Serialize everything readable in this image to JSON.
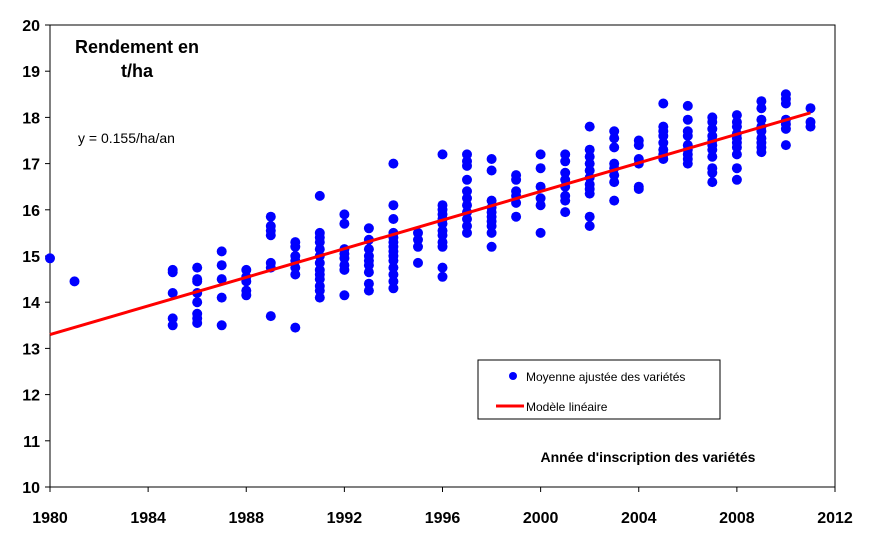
{
  "chart_data": {
    "type": "scatter",
    "title_lines": [
      "Rendement en",
      "t/ha"
    ],
    "equation": "y = 0.155/ha/an",
    "xlabel": "Année d'inscription des variétés",
    "ylabel": "",
    "xlim": [
      1980,
      2012
    ],
    "ylim": [
      10,
      20
    ],
    "x_ticks": [
      "1980",
      "1984",
      "1988",
      "1992",
      "1996",
      "2000",
      "2004",
      "2008",
      "2012"
    ],
    "y_ticks": [
      "10",
      "11",
      "12",
      "13",
      "14",
      "15",
      "16",
      "17",
      "18",
      "19",
      "20"
    ],
    "grid": false,
    "legend_position": "lower-right",
    "colors": {
      "points": "#0000ff",
      "trend": "#ff0000"
    },
    "series": [
      {
        "name": "Moyenne ajustée des variétés",
        "kind": "scatter",
        "points": [
          [
            1980,
            14.95
          ],
          [
            1981,
            14.45
          ],
          [
            1985,
            14.7
          ],
          [
            1985,
            14.65
          ],
          [
            1985,
            14.2
          ],
          [
            1985,
            13.65
          ],
          [
            1985,
            13.5
          ],
          [
            1986,
            14.75
          ],
          [
            1986,
            14.5
          ],
          [
            1986,
            14.45
          ],
          [
            1986,
            14.2
          ],
          [
            1986,
            14.0
          ],
          [
            1986,
            13.75
          ],
          [
            1986,
            13.65
          ],
          [
            1986,
            13.55
          ],
          [
            1987,
            15.1
          ],
          [
            1987,
            14.8
          ],
          [
            1987,
            14.5
          ],
          [
            1987,
            14.1
          ],
          [
            1987,
            13.5
          ],
          [
            1988,
            14.7
          ],
          [
            1988,
            14.55
          ],
          [
            1988,
            14.45
          ],
          [
            1988,
            14.25
          ],
          [
            1988,
            14.15
          ],
          [
            1989,
            15.85
          ],
          [
            1989,
            15.65
          ],
          [
            1989,
            15.55
          ],
          [
            1989,
            15.45
          ],
          [
            1989,
            14.85
          ],
          [
            1989,
            14.75
          ],
          [
            1989,
            13.7
          ],
          [
            1990,
            15.3
          ],
          [
            1990,
            15.2
          ],
          [
            1990,
            15.0
          ],
          [
            1990,
            14.9
          ],
          [
            1990,
            14.75
          ],
          [
            1990,
            14.6
          ],
          [
            1990,
            13.45
          ],
          [
            1991,
            16.3
          ],
          [
            1991,
            15.5
          ],
          [
            1991,
            15.4
          ],
          [
            1991,
            15.3
          ],
          [
            1991,
            15.15
          ],
          [
            1991,
            15.0
          ],
          [
            1991,
            14.85
          ],
          [
            1991,
            14.7
          ],
          [
            1991,
            14.6
          ],
          [
            1991,
            14.5
          ],
          [
            1991,
            14.35
          ],
          [
            1991,
            14.25
          ],
          [
            1991,
            14.1
          ],
          [
            1992,
            15.9
          ],
          [
            1992,
            15.7
          ],
          [
            1992,
            15.15
          ],
          [
            1992,
            15.05
          ],
          [
            1992,
            14.95
          ],
          [
            1992,
            14.8
          ],
          [
            1992,
            14.7
          ],
          [
            1992,
            14.15
          ],
          [
            1993,
            15.6
          ],
          [
            1993,
            15.35
          ],
          [
            1993,
            15.15
          ],
          [
            1993,
            15.0
          ],
          [
            1993,
            14.9
          ],
          [
            1993,
            14.8
          ],
          [
            1993,
            14.65
          ],
          [
            1993,
            14.4
          ],
          [
            1993,
            14.25
          ],
          [
            1994,
            17.0
          ],
          [
            1994,
            16.1
          ],
          [
            1994,
            15.8
          ],
          [
            1994,
            15.5
          ],
          [
            1994,
            15.4
          ],
          [
            1994,
            15.3
          ],
          [
            1994,
            15.2
          ],
          [
            1994,
            15.1
          ],
          [
            1994,
            15.0
          ],
          [
            1994,
            14.9
          ],
          [
            1994,
            14.75
          ],
          [
            1994,
            14.6
          ],
          [
            1994,
            14.45
          ],
          [
            1994,
            14.3
          ],
          [
            1995,
            15.5
          ],
          [
            1995,
            15.35
          ],
          [
            1995,
            15.2
          ],
          [
            1995,
            14.85
          ],
          [
            1996,
            17.2
          ],
          [
            1996,
            16.1
          ],
          [
            1996,
            16.0
          ],
          [
            1996,
            15.9
          ],
          [
            1996,
            15.8
          ],
          [
            1996,
            15.7
          ],
          [
            1996,
            15.55
          ],
          [
            1996,
            15.45
          ],
          [
            1996,
            15.3
          ],
          [
            1996,
            15.2
          ],
          [
            1996,
            14.75
          ],
          [
            1996,
            14.55
          ],
          [
            1997,
            17.2
          ],
          [
            1997,
            17.05
          ],
          [
            1997,
            16.95
          ],
          [
            1997,
            16.65
          ],
          [
            1997,
            16.4
          ],
          [
            1997,
            16.25
          ],
          [
            1997,
            16.1
          ],
          [
            1997,
            15.95
          ],
          [
            1997,
            15.8
          ],
          [
            1997,
            15.65
          ],
          [
            1997,
            15.5
          ],
          [
            1998,
            17.1
          ],
          [
            1998,
            16.85
          ],
          [
            1998,
            16.2
          ],
          [
            1998,
            16.05
          ],
          [
            1998,
            15.95
          ],
          [
            1998,
            15.85
          ],
          [
            1998,
            15.75
          ],
          [
            1998,
            15.65
          ],
          [
            1998,
            15.5
          ],
          [
            1998,
            15.2
          ],
          [
            1999,
            16.75
          ],
          [
            1999,
            16.65
          ],
          [
            1999,
            16.4
          ],
          [
            1999,
            16.3
          ],
          [
            1999,
            16.15
          ],
          [
            1999,
            15.85
          ],
          [
            2000,
            17.2
          ],
          [
            2000,
            16.9
          ],
          [
            2000,
            16.5
          ],
          [
            2000,
            16.25
          ],
          [
            2000,
            16.1
          ],
          [
            2000,
            15.5
          ],
          [
            2001,
            17.2
          ],
          [
            2001,
            17.05
          ],
          [
            2001,
            16.8
          ],
          [
            2001,
            16.65
          ],
          [
            2001,
            16.5
          ],
          [
            2001,
            16.3
          ],
          [
            2001,
            16.2
          ],
          [
            2001,
            15.95
          ],
          [
            2002,
            17.8
          ],
          [
            2002,
            17.3
          ],
          [
            2002,
            17.15
          ],
          [
            2002,
            17.0
          ],
          [
            2002,
            16.85
          ],
          [
            2002,
            16.7
          ],
          [
            2002,
            16.55
          ],
          [
            2002,
            16.45
          ],
          [
            2002,
            16.35
          ],
          [
            2002,
            15.85
          ],
          [
            2002,
            15.65
          ],
          [
            2003,
            17.7
          ],
          [
            2003,
            17.55
          ],
          [
            2003,
            17.35
          ],
          [
            2003,
            17.0
          ],
          [
            2003,
            16.9
          ],
          [
            2003,
            16.75
          ],
          [
            2003,
            16.6
          ],
          [
            2003,
            16.2
          ],
          [
            2004,
            17.5
          ],
          [
            2004,
            17.4
          ],
          [
            2004,
            17.1
          ],
          [
            2004,
            17.0
          ],
          [
            2004,
            16.5
          ],
          [
            2004,
            16.45
          ],
          [
            2005,
            18.3
          ],
          [
            2005,
            17.8
          ],
          [
            2005,
            17.7
          ],
          [
            2005,
            17.6
          ],
          [
            2005,
            17.45
          ],
          [
            2005,
            17.3
          ],
          [
            2005,
            17.2
          ],
          [
            2005,
            17.1
          ],
          [
            2006,
            18.25
          ],
          [
            2006,
            17.95
          ],
          [
            2006,
            17.7
          ],
          [
            2006,
            17.6
          ],
          [
            2006,
            17.4
          ],
          [
            2006,
            17.3
          ],
          [
            2006,
            17.2
          ],
          [
            2006,
            17.1
          ],
          [
            2006,
            17.0
          ],
          [
            2007,
            18.0
          ],
          [
            2007,
            17.9
          ],
          [
            2007,
            17.75
          ],
          [
            2007,
            17.6
          ],
          [
            2007,
            17.5
          ],
          [
            2007,
            17.4
          ],
          [
            2007,
            17.3
          ],
          [
            2007,
            17.15
          ],
          [
            2007,
            16.9
          ],
          [
            2007,
            16.8
          ],
          [
            2007,
            16.6
          ],
          [
            2008,
            18.05
          ],
          [
            2008,
            17.9
          ],
          [
            2008,
            17.8
          ],
          [
            2008,
            17.65
          ],
          [
            2008,
            17.55
          ],
          [
            2008,
            17.45
          ],
          [
            2008,
            17.35
          ],
          [
            2008,
            17.2
          ],
          [
            2008,
            16.9
          ],
          [
            2008,
            16.65
          ],
          [
            2009,
            18.35
          ],
          [
            2009,
            18.2
          ],
          [
            2009,
            17.95
          ],
          [
            2009,
            17.8
          ],
          [
            2009,
            17.7
          ],
          [
            2009,
            17.55
          ],
          [
            2009,
            17.45
          ],
          [
            2009,
            17.35
          ],
          [
            2009,
            17.25
          ],
          [
            2010,
            18.5
          ],
          [
            2010,
            18.4
          ],
          [
            2010,
            18.3
          ],
          [
            2010,
            17.95
          ],
          [
            2010,
            17.85
          ],
          [
            2010,
            17.75
          ],
          [
            2010,
            17.4
          ],
          [
            2011,
            18.2
          ],
          [
            2011,
            17.9
          ],
          [
            2011,
            17.8
          ]
        ]
      },
      {
        "name": "Modèle linéaire",
        "kind": "line",
        "points": [
          [
            1980,
            13.3
          ],
          [
            2011,
            18.1
          ]
        ]
      }
    ]
  }
}
